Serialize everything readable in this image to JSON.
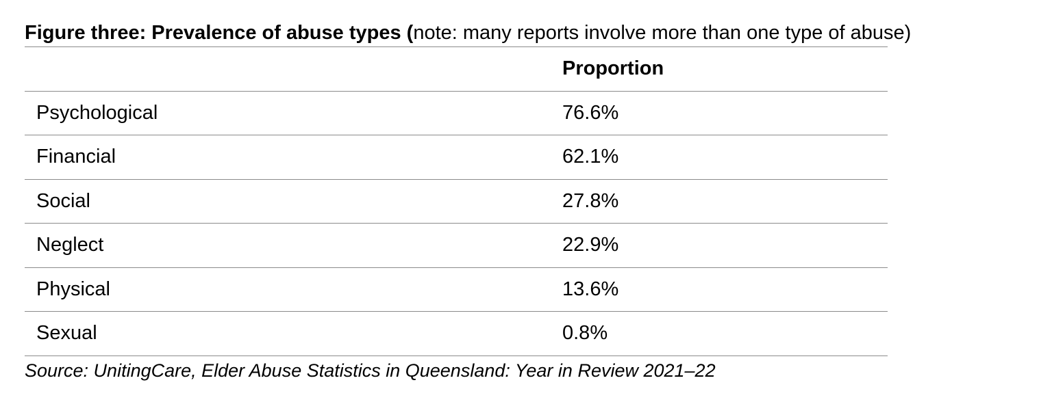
{
  "caption": {
    "bold": "Figure three: Prevalence of abuse types (",
    "normal": "note: many reports involve more than one type of abuse)"
  },
  "table": {
    "header": {
      "label": "",
      "value": "Proportion"
    },
    "rows": [
      {
        "label": "Psychological",
        "value": "76.6%"
      },
      {
        "label": "Financial",
        "value": "62.1%"
      },
      {
        "label": "Social",
        "value": "27.8%"
      },
      {
        "label": "Neglect",
        "value": "22.9%"
      },
      {
        "label": "Physical",
        "value": "13.6%"
      },
      {
        "label": "Sexual",
        "value": "0.8%"
      }
    ]
  },
  "source": "Source: UnitingCare, Elder Abuse Statistics in Queensland: Year in Review 2021–22"
}
